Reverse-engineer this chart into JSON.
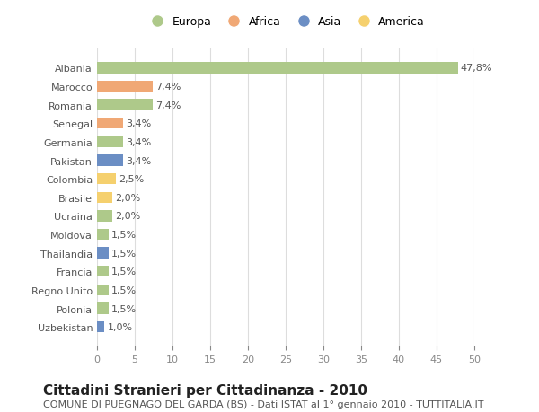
{
  "categories": [
    "Albania",
    "Marocco",
    "Romania",
    "Senegal",
    "Germania",
    "Pakistan",
    "Colombia",
    "Brasile",
    "Ucraina",
    "Moldova",
    "Thailandia",
    "Francia",
    "Regno Unito",
    "Polonia",
    "Uzbekistan"
  ],
  "values": [
    47.8,
    7.4,
    7.4,
    3.4,
    3.4,
    3.4,
    2.5,
    2.0,
    2.0,
    1.5,
    1.5,
    1.5,
    1.5,
    1.5,
    1.0
  ],
  "labels": [
    "47,8%",
    "7,4%",
    "7,4%",
    "3,4%",
    "3,4%",
    "3,4%",
    "2,5%",
    "2,0%",
    "2,0%",
    "1,5%",
    "1,5%",
    "1,5%",
    "1,5%",
    "1,5%",
    "1,0%"
  ],
  "continents": [
    "Europa",
    "Africa",
    "Europa",
    "Africa",
    "Europa",
    "Asia",
    "America",
    "America",
    "Europa",
    "Europa",
    "Asia",
    "Europa",
    "Europa",
    "Europa",
    "Asia"
  ],
  "continent_colors": {
    "Europa": "#aec98a",
    "Africa": "#f0a875",
    "Asia": "#6b8ec4",
    "America": "#f5d06e"
  },
  "legend_order": [
    "Europa",
    "Africa",
    "Asia",
    "America"
  ],
  "title": "Cittadini Stranieri per Cittadinanza - 2010",
  "subtitle": "COMUNE DI PUEGNAGO DEL GARDA (BS) - Dati ISTAT al 1° gennaio 2010 - TUTTITALIA.IT",
  "xlim": [
    0,
    50
  ],
  "xticks": [
    0,
    5,
    10,
    15,
    20,
    25,
    30,
    35,
    40,
    45,
    50
  ],
  "bg_color": "#ffffff",
  "grid_color": "#dddddd",
  "bar_height": 0.6,
  "label_fontsize": 8,
  "tick_fontsize": 8,
  "title_fontsize": 11,
  "subtitle_fontsize": 8
}
